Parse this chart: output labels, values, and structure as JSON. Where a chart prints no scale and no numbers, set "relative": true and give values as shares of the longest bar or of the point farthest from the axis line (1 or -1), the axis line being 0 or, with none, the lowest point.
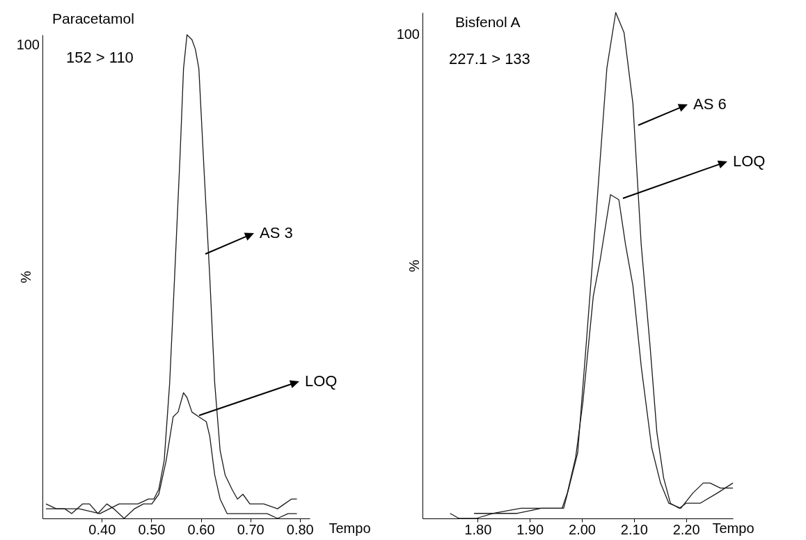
{
  "chart_data": [
    {
      "type": "line",
      "title": "Paracetamol",
      "subtitle": "152 > 110",
      "xlabel": "Tempo",
      "ylabel": "%",
      "relative": true,
      "xlim": [
        0.28,
        0.82
      ],
      "xticks": [
        {
          "value": 0.4,
          "label": "0.40"
        },
        {
          "value": 0.5,
          "label": "0.50"
        },
        {
          "value": 0.6,
          "label": "0.60"
        },
        {
          "value": 0.7,
          "label": "0.70"
        },
        {
          "value": 0.8,
          "label": "0.80"
        }
      ],
      "annotations": [
        "100",
        "AS 3",
        "LOQ"
      ],
      "series": [
        {
          "color": "#1a1a1a",
          "x": [
            0.287,
            0.318,
            0.354,
            0.396,
            0.435,
            0.456,
            0.473,
            0.494,
            0.505,
            0.515,
            0.526,
            0.537,
            0.547,
            0.558,
            0.565,
            0.572,
            0.582,
            0.589,
            0.596,
            0.607,
            0.618,
            0.628,
            0.639,
            0.649,
            0.663,
            0.674,
            0.685,
            0.699,
            0.727,
            0.755,
            0.769,
            0.783,
            0.794
          ],
          "values": [
            0.02,
            0.02,
            0.02,
            0.01,
            0.03,
            0.03,
            0.03,
            0.04,
            0.04,
            0.06,
            0.12,
            0.28,
            0.5,
            0.75,
            0.93,
            1.0,
            0.99,
            0.97,
            0.93,
            0.71,
            0.5,
            0.28,
            0.14,
            0.09,
            0.06,
            0.04,
            0.05,
            0.03,
            0.03,
            0.02,
            0.03,
            0.04,
            0.04
          ]
        },
        {
          "color": "#1a1a1a",
          "x": [
            0.287,
            0.308,
            0.325,
            0.339,
            0.361,
            0.375,
            0.392,
            0.41,
            0.424,
            0.445,
            0.466,
            0.484,
            0.501,
            0.515,
            0.53,
            0.544,
            0.554,
            0.565,
            0.572,
            0.582,
            0.596,
            0.611,
            0.618,
            0.628,
            0.639,
            0.653,
            0.667,
            0.685,
            0.706,
            0.734,
            0.755,
            0.776,
            0.787,
            0.794
          ],
          "values": [
            0.03,
            0.02,
            0.02,
            0.01,
            0.03,
            0.03,
            0.01,
            0.03,
            0.02,
            0.0,
            0.02,
            0.03,
            0.03,
            0.05,
            0.12,
            0.21,
            0.22,
            0.26,
            0.25,
            0.22,
            0.21,
            0.2,
            0.17,
            0.09,
            0.04,
            0.01,
            0.01,
            0.01,
            0.01,
            0.01,
            0.0,
            0.01,
            0.01,
            0.01
          ]
        }
      ]
    },
    {
      "type": "line",
      "title": "Bisfenol A",
      "subtitle": "227.1 > 133",
      "xlabel": "Tempo",
      "ylabel": "%",
      "relative": true,
      "xlim": [
        1.694,
        2.29
      ],
      "xticks": [
        {
          "value": 1.8,
          "label": "1.80"
        },
        {
          "value": 1.9,
          "label": "1.90"
        },
        {
          "value": 2.0,
          "label": "2.00"
        },
        {
          "value": 2.1,
          "label": "2.10"
        },
        {
          "value": 2.2,
          "label": "2.20"
        }
      ],
      "annotations": [
        "100",
        "AS 6",
        "LOQ"
      ],
      "series": [
        {
          "color": "#1a1a1a",
          "x": [
            1.747,
            1.764,
            1.797,
            1.83,
            1.876,
            1.922,
            1.955,
            1.965,
            1.975,
            1.992,
            2.008,
            2.028,
            2.048,
            2.065,
            2.081,
            2.098,
            2.114,
            2.131,
            2.144,
            2.157,
            2.17,
            2.187,
            2.2,
            2.227,
            2.26,
            2.29
          ],
          "values": [
            0.01,
            0.0,
            0.0,
            0.01,
            0.01,
            0.02,
            0.02,
            0.02,
            0.06,
            0.13,
            0.34,
            0.61,
            0.89,
            1.0,
            0.96,
            0.82,
            0.54,
            0.34,
            0.17,
            0.08,
            0.03,
            0.02,
            0.03,
            0.03,
            0.05,
            0.07
          ]
        },
        {
          "color": "#1a1a1a",
          "x": [
            1.793,
            1.83,
            1.883,
            1.942,
            1.962,
            1.972,
            1.988,
            2.002,
            2.022,
            2.035,
            2.055,
            2.071,
            2.084,
            2.098,
            2.114,
            2.134,
            2.151,
            2.167,
            2.19,
            2.213,
            2.233,
            2.246,
            2.266,
            2.29
          ],
          "values": [
            0.01,
            0.01,
            0.02,
            0.02,
            0.02,
            0.05,
            0.12,
            0.23,
            0.44,
            0.51,
            0.64,
            0.63,
            0.54,
            0.46,
            0.3,
            0.14,
            0.07,
            0.03,
            0.02,
            0.05,
            0.07,
            0.07,
            0.06,
            0.06
          ]
        }
      ]
    }
  ]
}
